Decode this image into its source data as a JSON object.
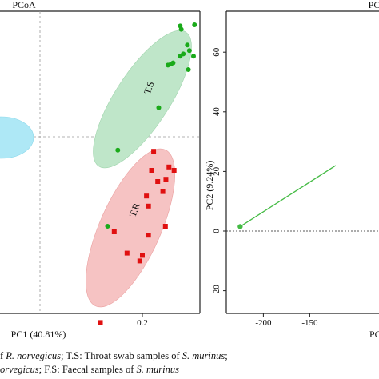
{
  "chart_data": [
    {
      "type": "scatter",
      "title": "PCoA",
      "xlabel": "PC1 (40.81%)",
      "ylabel": "",
      "x_ticks": [
        0.2
      ],
      "y_ticks": [],
      "grid": false,
      "ref_lines": {
        "x": 0.0,
        "y": 0.0,
        "style": "dashed"
      },
      "groups": [
        {
          "label": "T.S",
          "color": "#1aaa1a",
          "ellipse_fill": "#bfe6c9",
          "marker": "circle",
          "points": [
            {
              "x": 0.302,
              "y": 0.5
            },
            {
              "x": 0.274,
              "y": 0.495
            },
            {
              "x": 0.276,
              "y": 0.48
            },
            {
              "x": 0.288,
              "y": 0.41
            },
            {
              "x": 0.292,
              "y": 0.385
            },
            {
              "x": 0.28,
              "y": 0.37
            },
            {
              "x": 0.274,
              "y": 0.36
            },
            {
              "x": 0.3,
              "y": 0.36
            },
            {
              "x": 0.26,
              "y": 0.33
            },
            {
              "x": 0.25,
              "y": 0.32
            },
            {
              "x": 0.256,
              "y": 0.325
            },
            {
              "x": 0.29,
              "y": 0.3
            },
            {
              "x": 0.232,
              "y": 0.13
            },
            {
              "x": 0.152,
              "y": -0.06
            },
            {
              "x": 0.132,
              "y": -0.4
            }
          ]
        },
        {
          "label": "T.R",
          "color": "#e01010",
          "ellipse_fill": "#f6c3c3",
          "marker": "square",
          "points": [
            {
              "x": 0.222,
              "y": -0.065
            },
            {
              "x": 0.218,
              "y": -0.15
            },
            {
              "x": 0.252,
              "y": -0.135
            },
            {
              "x": 0.262,
              "y": -0.15
            },
            {
              "x": 0.246,
              "y": -0.19
            },
            {
              "x": 0.23,
              "y": -0.2
            },
            {
              "x": 0.24,
              "y": -0.245
            },
            {
              "x": 0.208,
              "y": -0.265
            },
            {
              "x": 0.212,
              "y": -0.31
            },
            {
              "x": 0.245,
              "y": -0.4
            },
            {
              "x": 0.212,
              "y": -0.44
            },
            {
              "x": 0.145,
              "y": -0.425
            },
            {
              "x": 0.17,
              "y": -0.52
            },
            {
              "x": 0.2,
              "y": -0.53
            },
            {
              "x": 0.195,
              "y": -0.555
            },
            {
              "x": 0.118,
              "y": -0.83
            }
          ]
        },
        {
          "label": "",
          "color": "#29c4e6",
          "ellipse_fill": "#aee8f6",
          "marker": "plus",
          "points": [
            {
              "x": -0.3,
              "y": 0.0
            }
          ]
        }
      ]
    },
    {
      "type": "line",
      "title": "PC",
      "xlabel": "PC",
      "ylabel": "PC2 (9.24%)",
      "x_ticks": [
        -200,
        -150
      ],
      "y_ticks": [
        60,
        40,
        20,
        0,
        -20
      ],
      "grid": false,
      "ref_lines": {
        "y": 0,
        "style": "dashed"
      },
      "series": [
        {
          "name": "",
          "color": "#44bb44",
          "points": [
            {
              "x": -225,
              "y": 1.5
            },
            {
              "x": -122,
              "y": 22.0
            }
          ]
        }
      ]
    }
  ],
  "caption": {
    "line1": [
      {
        "text": "f ",
        "italic": false
      },
      {
        "text": "R. norvegicus",
        "italic": true
      },
      {
        "text": ";   T.S: Throat swab samples of ",
        "italic": false
      },
      {
        "text": "S. murinus",
        "italic": true
      },
      {
        "text": ";",
        "italic": false
      }
    ],
    "line2": [
      {
        "text": "orvegicus",
        "italic": true
      },
      {
        "text": ";   F.S: Faecal samples of ",
        "italic": false
      },
      {
        "text": "S. murinus",
        "italic": true
      }
    ]
  }
}
